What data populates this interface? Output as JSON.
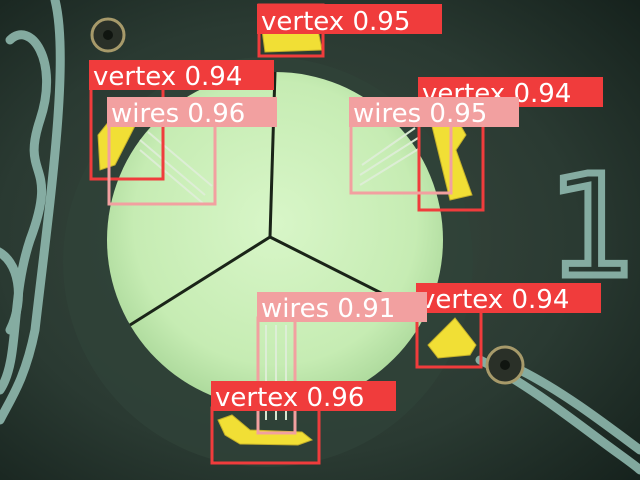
{
  "detections": [
    {
      "label": "vertex",
      "score": "0.95",
      "color": "#f03c3c"
    },
    {
      "label": "vertex",
      "score": "0.94",
      "color": "#f03c3c"
    },
    {
      "label": "wires",
      "score": "0.96",
      "color": "#f2a0a0"
    },
    {
      "label": "vertex",
      "score": "0.94",
      "color": "#f03c3c"
    },
    {
      "label": "wires",
      "score": "0.95",
      "color": "#f2a0a0"
    },
    {
      "label": "vertex",
      "score": "0.94",
      "color": "#f03c3c"
    },
    {
      "label": "wires",
      "score": "0.91",
      "color": "#f2a0a0"
    },
    {
      "label": "vertex",
      "score": "0.96",
      "color": "#f03c3c"
    }
  ],
  "background_marking": "1"
}
